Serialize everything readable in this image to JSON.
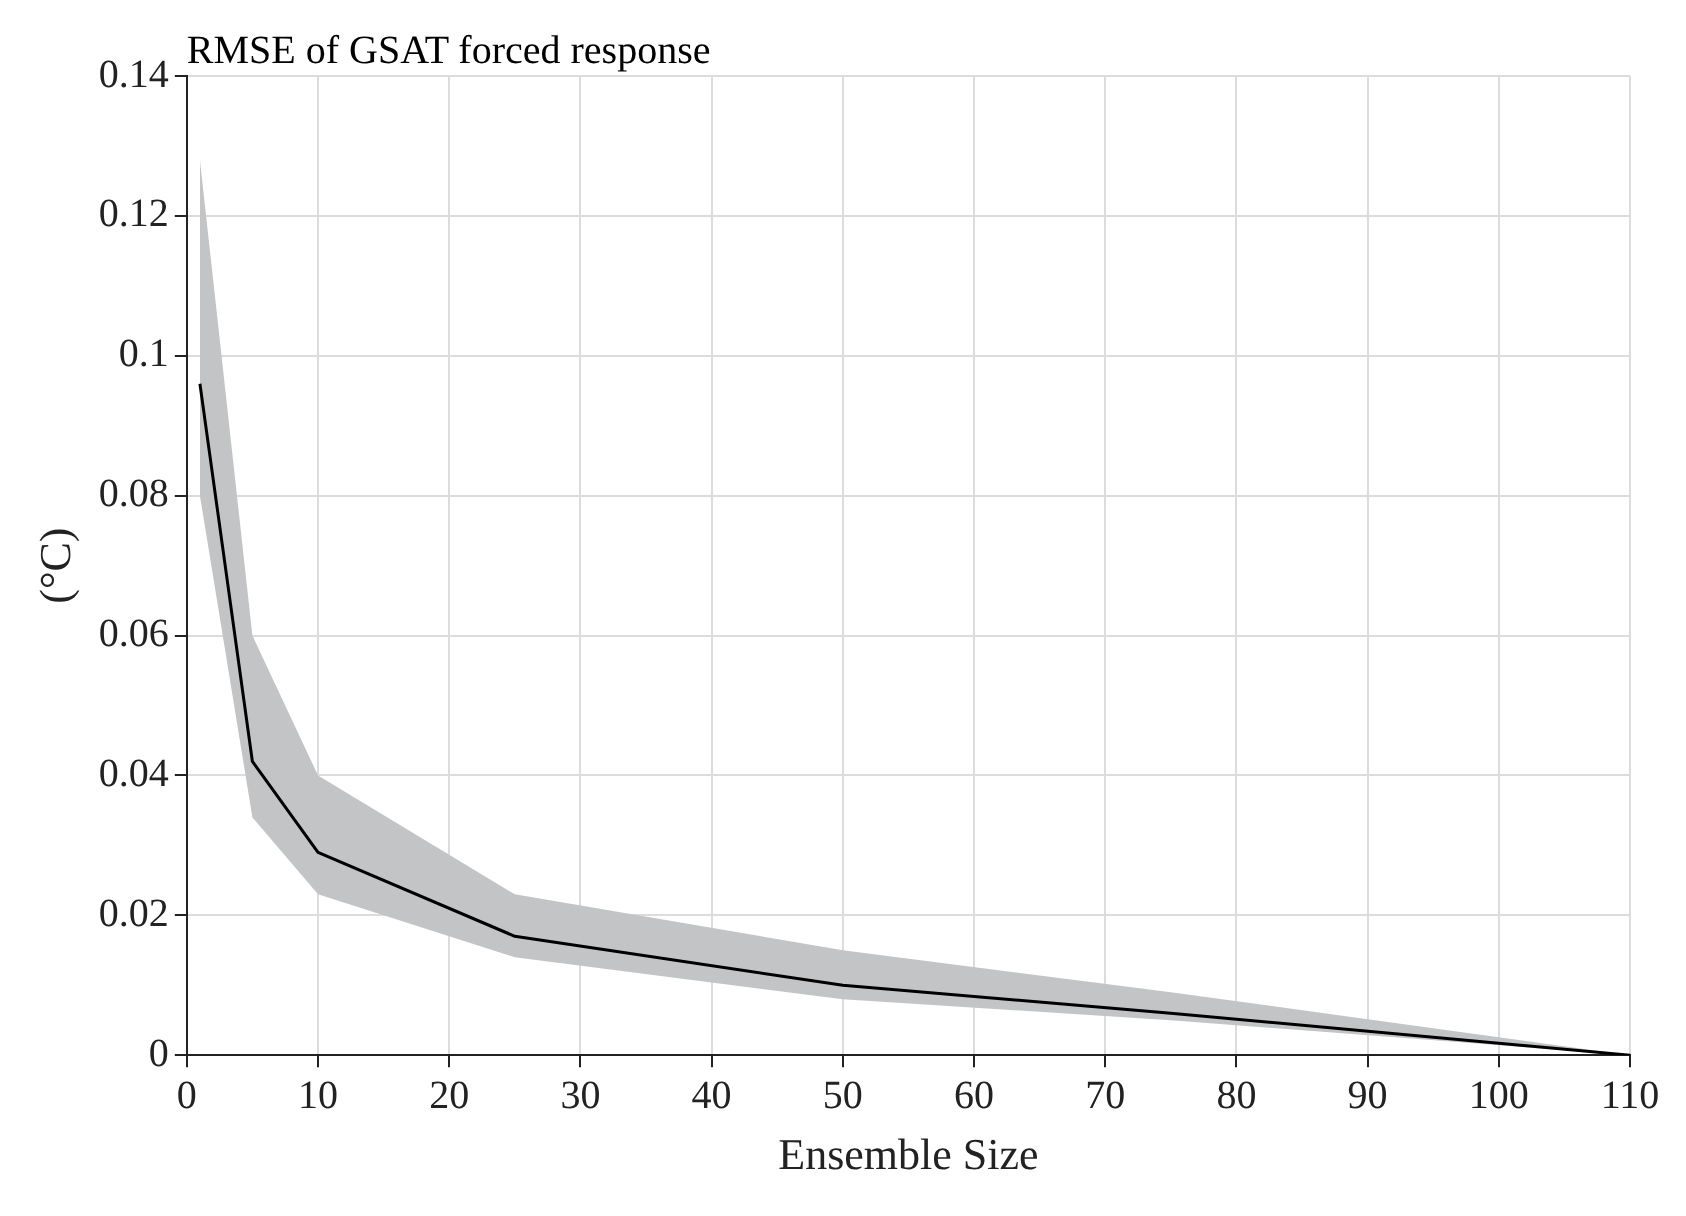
{
  "chart_data": {
    "type": "line",
    "title": "RMSE of GSAT forced response",
    "xlabel": "Ensemble Size",
    "ylabel": "(°C)",
    "x": [
      1,
      5,
      10,
      25,
      50,
      75,
      110
    ],
    "series": [
      {
        "color": "#000000",
        "values": [
          0.096,
          0.042,
          0.029,
          0.017,
          0.01,
          0.006,
          0
        ],
        "lower": [
          0.08,
          0.034,
          0.023,
          0.014,
          0.008,
          0.005,
          0
        ],
        "upper": [
          0.128,
          0.06,
          0.04,
          0.023,
          0.015,
          0.009,
          0
        ]
      }
    ],
    "xlim": [
      0,
      110
    ],
    "xticks": [
      0,
      10,
      20,
      30,
      40,
      50,
      60,
      70,
      80,
      90,
      100,
      110
    ],
    "ylim": [
      0,
      0.14
    ],
    "yticks": [
      0,
      0.02,
      0.04,
      0.06,
      0.08,
      0.1,
      0.12,
      0.14
    ],
    "grid": true,
    "legend": false,
    "marker": "none",
    "line_style": "solid"
  }
}
